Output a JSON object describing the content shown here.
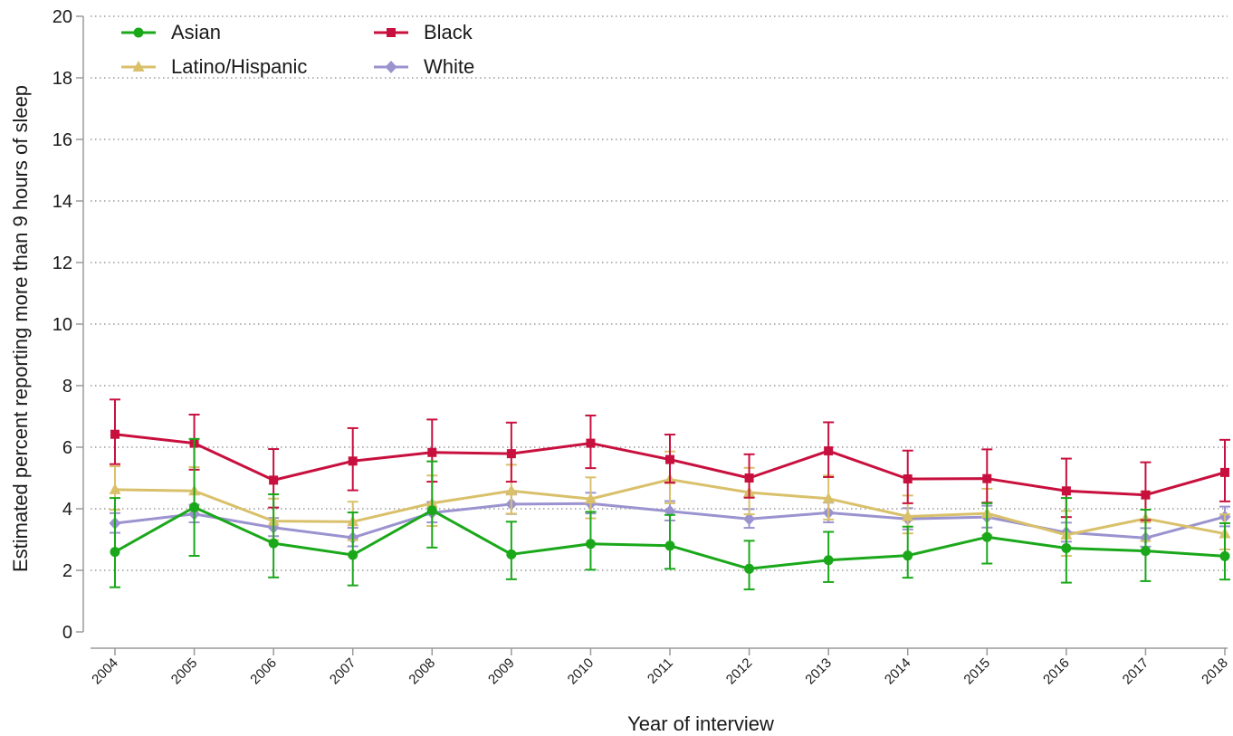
{
  "chart_data": {
    "type": "line",
    "xlabel": "Year of interview",
    "ylabel": "Estimated percent reporting more than 9 hours of sleep",
    "ylim": [
      0,
      20
    ],
    "yticks": [
      0,
      2,
      4,
      6,
      8,
      10,
      12,
      14,
      16,
      18,
      20
    ],
    "categories": [
      "2004",
      "2005",
      "2006",
      "2007",
      "2008",
      "2009",
      "2010",
      "2011",
      "2012",
      "2013",
      "2014",
      "2015",
      "2016",
      "2017",
      "2018"
    ],
    "grid": "horizontal dotted",
    "legend_position": "top-left",
    "error_bars": true,
    "series": [
      {
        "name": "Asian",
        "color": "#1aa81a",
        "marker": "circle",
        "values": [
          2.6,
          4.05,
          2.88,
          2.5,
          3.95,
          2.52,
          2.86,
          2.8,
          2.05,
          2.33,
          2.48,
          3.08,
          2.72,
          2.63,
          2.46
        ],
        "lower": [
          1.45,
          2.47,
          1.77,
          1.51,
          2.74,
          1.71,
          2.02,
          2.05,
          1.38,
          1.62,
          1.76,
          2.22,
          1.6,
          1.65,
          1.7
        ],
        "upper": [
          4.35,
          6.27,
          4.47,
          3.88,
          5.54,
          3.58,
          3.9,
          3.8,
          2.96,
          3.25,
          3.42,
          4.18,
          4.35,
          3.97,
          3.53
        ]
      },
      {
        "name": "Black",
        "color": "#c8103e",
        "marker": "square",
        "values": [
          6.42,
          6.13,
          4.93,
          5.55,
          5.83,
          5.79,
          6.13,
          5.6,
          5.0,
          5.88,
          4.97,
          4.98,
          4.58,
          4.45,
          5.18
        ],
        "lower": [
          5.45,
          5.27,
          4.04,
          4.6,
          4.88,
          4.88,
          5.32,
          4.85,
          4.36,
          5.03,
          4.18,
          4.2,
          3.73,
          3.63,
          4.24
        ],
        "upper": [
          7.55,
          7.06,
          5.94,
          6.62,
          6.9,
          6.8,
          7.03,
          6.41,
          5.77,
          6.81,
          5.89,
          5.93,
          5.63,
          5.51,
          6.24
        ]
      },
      {
        "name": "Latino/Hispanic",
        "color": "#d9c06a",
        "marker": "triangle",
        "values": [
          4.62,
          4.58,
          3.6,
          3.58,
          4.18,
          4.58,
          4.32,
          4.95,
          4.53,
          4.33,
          3.75,
          3.85,
          3.15,
          3.68,
          3.19
        ],
        "lower": [
          3.97,
          3.95,
          2.98,
          2.98,
          3.44,
          3.84,
          3.69,
          4.18,
          3.82,
          3.65,
          3.2,
          3.14,
          2.47,
          2.95,
          2.68
        ],
        "upper": [
          5.38,
          5.35,
          4.33,
          4.23,
          5.08,
          5.43,
          5.02,
          5.86,
          5.33,
          5.08,
          4.43,
          4.65,
          3.93,
          4.56,
          3.82
        ]
      },
      {
        "name": "White",
        "color": "#9a93cf",
        "marker": "diamond",
        "values": [
          3.53,
          3.83,
          3.39,
          3.06,
          3.87,
          4.15,
          4.17,
          3.92,
          3.67,
          3.87,
          3.67,
          3.73,
          3.23,
          3.05,
          3.74
        ],
        "lower": [
          3.22,
          3.56,
          3.11,
          2.78,
          3.56,
          3.83,
          3.85,
          3.62,
          3.38,
          3.56,
          3.33,
          3.39,
          2.93,
          2.77,
          3.43
        ],
        "upper": [
          3.86,
          4.13,
          3.7,
          3.38,
          4.22,
          4.5,
          4.52,
          4.25,
          3.99,
          4.2,
          4.02,
          4.1,
          3.55,
          3.37,
          4.07
        ]
      }
    ],
    "legend_order": [
      "Asian",
      "Black",
      "Latino/Hispanic",
      "White"
    ]
  }
}
